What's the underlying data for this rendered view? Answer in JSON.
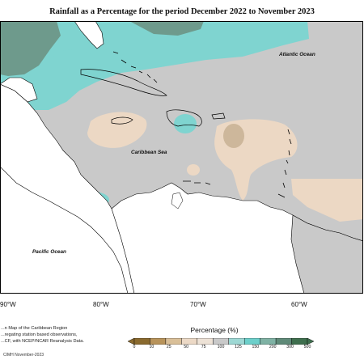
{
  "title": "Rainfall as a Percentage for the period December 2022 to November 2023",
  "map_labels": {
    "atlantic": "Atlantic Ocean",
    "caribbean": "Caribbean Sea",
    "pacific": "Pacific Ocean"
  },
  "longitude_labels": [
    "90°W",
    "80°W",
    "70°W",
    "60°W"
  ],
  "notes": [
    "...n Map of the Caribbean Region",
    "...regating station based observations,",
    "...CF, with NCEP/NCAR Reanalysis Data."
  ],
  "legend": {
    "title": "Percentage (%)",
    "ticks": [
      "0",
      "10",
      "25",
      "50",
      "75",
      "100",
      "125",
      "150",
      "200",
      "300",
      "500"
    ],
    "colors": [
      "#8a6a2e",
      "#b8935a",
      "#d9bf98",
      "#ecd9c6",
      "#ede2d6",
      "#c9c9c9",
      "#9ed8d4",
      "#6ccfca",
      "#7fb2a4",
      "#5f8a78",
      "#3e6f4e"
    ]
  },
  "copyright": "CIMH November-2023",
  "colors": {
    "normal": "#c9c9c9",
    "wet": "#7fd4d0",
    "very_wet": "#6e9a8c",
    "dry": "#ecd8c4",
    "very_dry": "#cdb79b",
    "land": "#ffffff"
  }
}
